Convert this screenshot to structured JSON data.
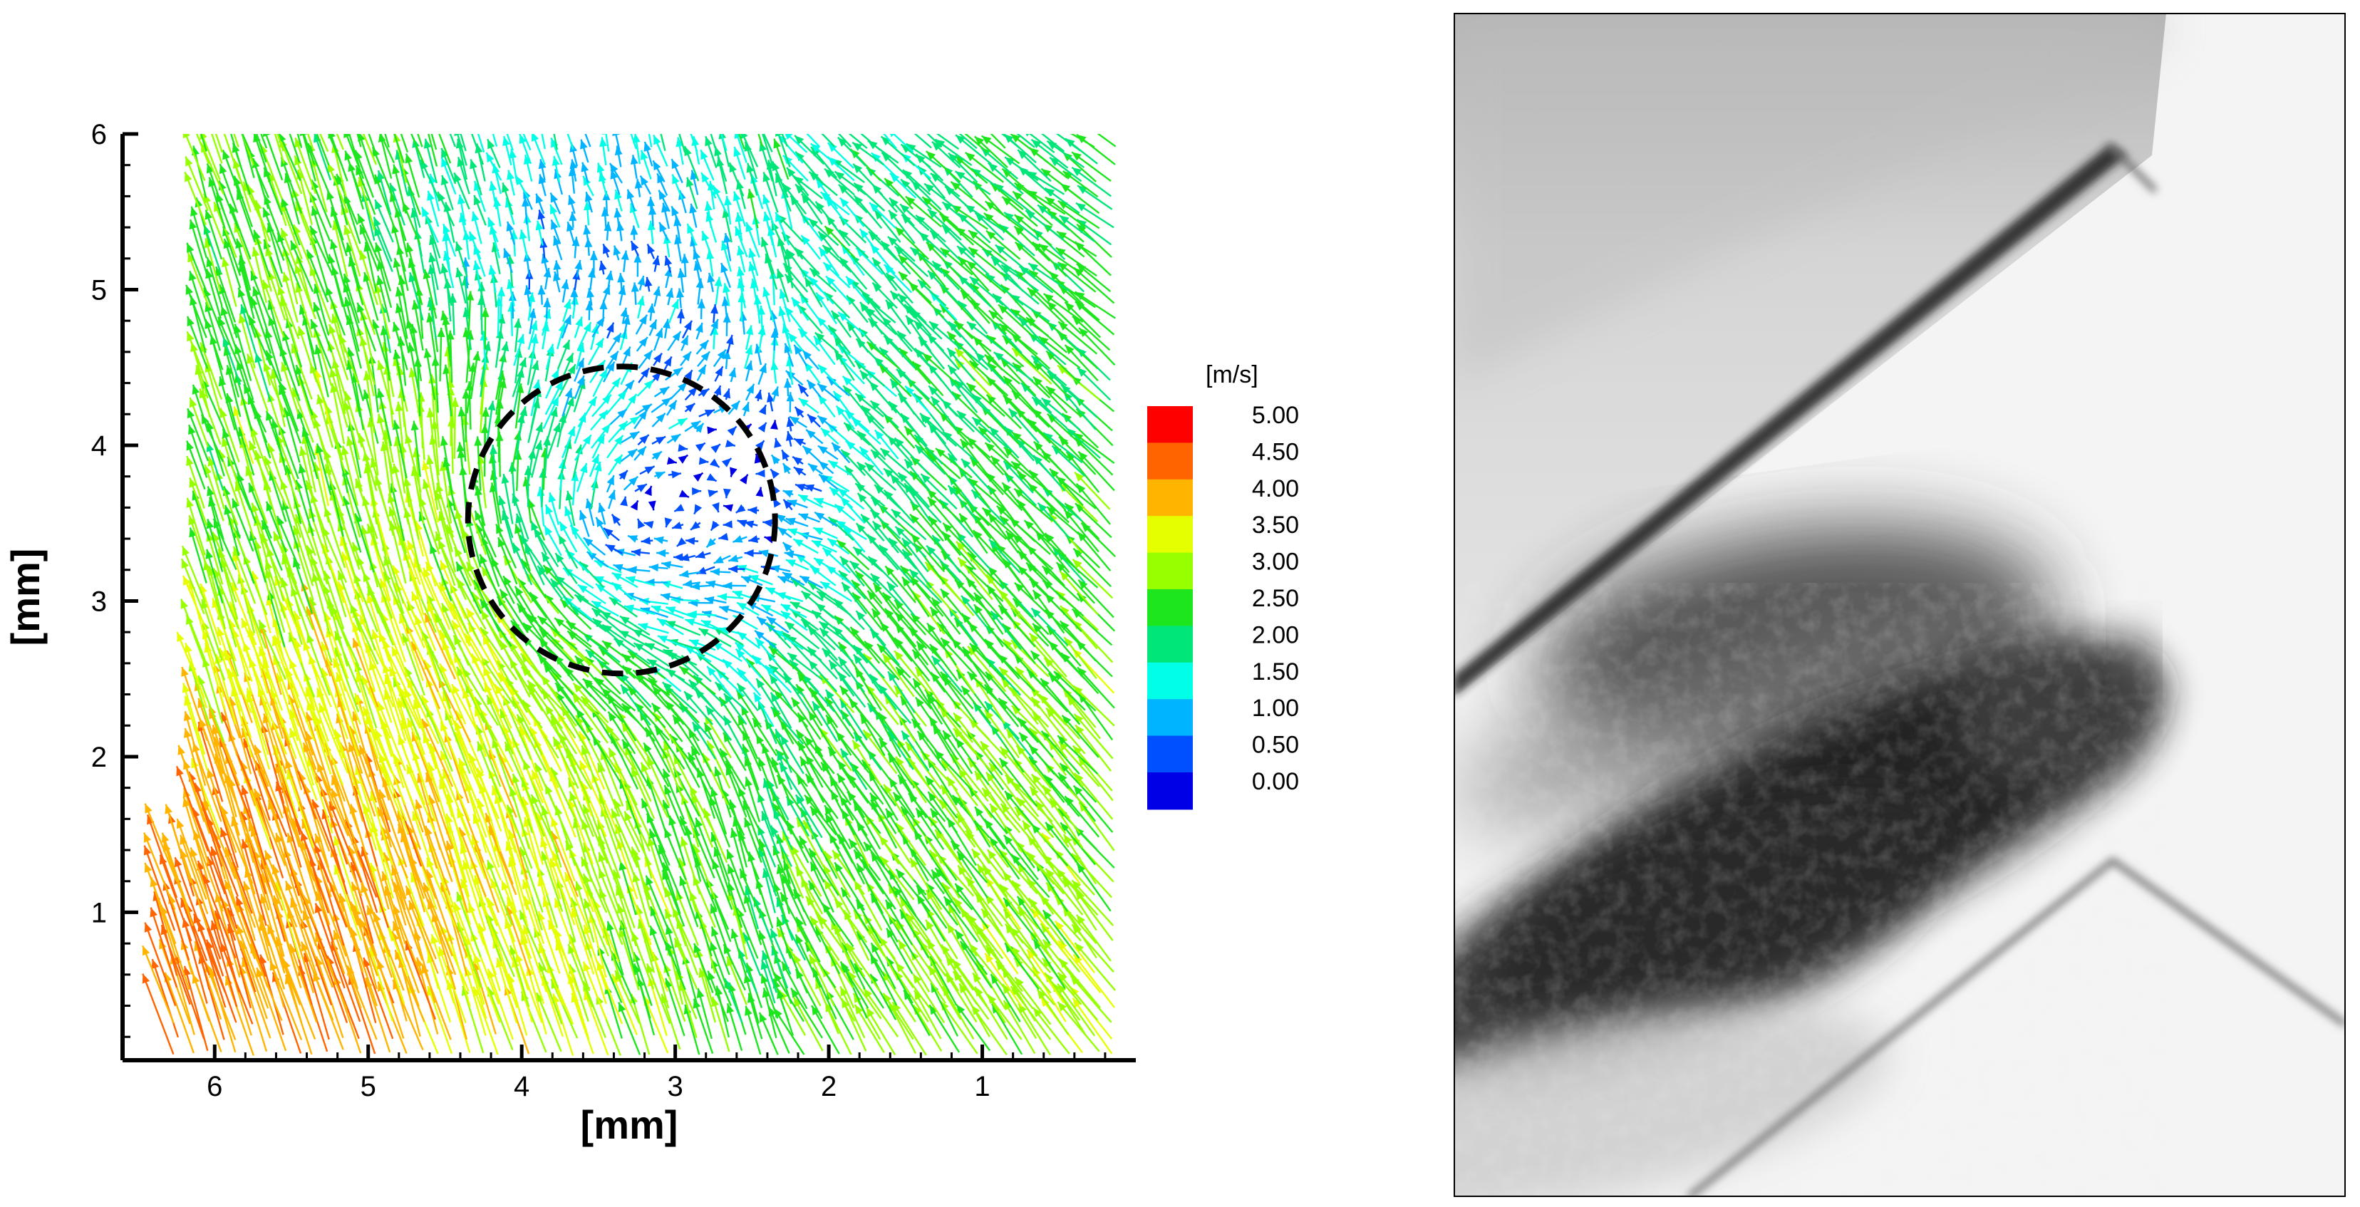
{
  "chart_data": [
    {
      "type": "vector-field",
      "xlabel": "[mm]",
      "ylabel": "[mm]",
      "x_reversed": true,
      "xlim": [
        6.6,
        0.0
      ],
      "ylim": [
        0.05,
        6.0
      ],
      "x_ticks": [
        6,
        5,
        4,
        3,
        2,
        1
      ],
      "y_ticks": [
        1,
        2,
        3,
        4,
        5,
        6
      ],
      "colorbar": {
        "title": "[m/s]",
        "levels": [
          5.0,
          4.5,
          4.0,
          3.5,
          3.0,
          2.5,
          2.0,
          1.5,
          1.0,
          0.5,
          0.0
        ],
        "labels": [
          "5.00",
          "4.50",
          "4.00",
          "3.50",
          "3.00",
          "2.50",
          "2.00",
          "1.50",
          "1.00",
          "0.50",
          "0.00"
        ],
        "colors": [
          "#ff0000",
          "#ff6400",
          "#ffb400",
          "#e6ff00",
          "#96ff00",
          "#1ee61e",
          "#00e678",
          "#00ffe6",
          "#00b4ff",
          "#0050ff",
          "#0000e6"
        ]
      },
      "annotation_circle": {
        "center": [
          3.35,
          3.52
        ],
        "radius": 1.0,
        "style": "dashed"
      },
      "vortex_center": [
        3.4,
        3.5
      ],
      "speed_range": [
        0.0,
        5.0
      ],
      "grid": false
    },
    {
      "type": "image",
      "content": "grayscale flow visualization photograph"
    }
  ],
  "colors": {
    "axis": "#000000",
    "circle": "#000000",
    "photo_background": "#f4f4f4",
    "photo_dark": "#1a1a1a"
  }
}
